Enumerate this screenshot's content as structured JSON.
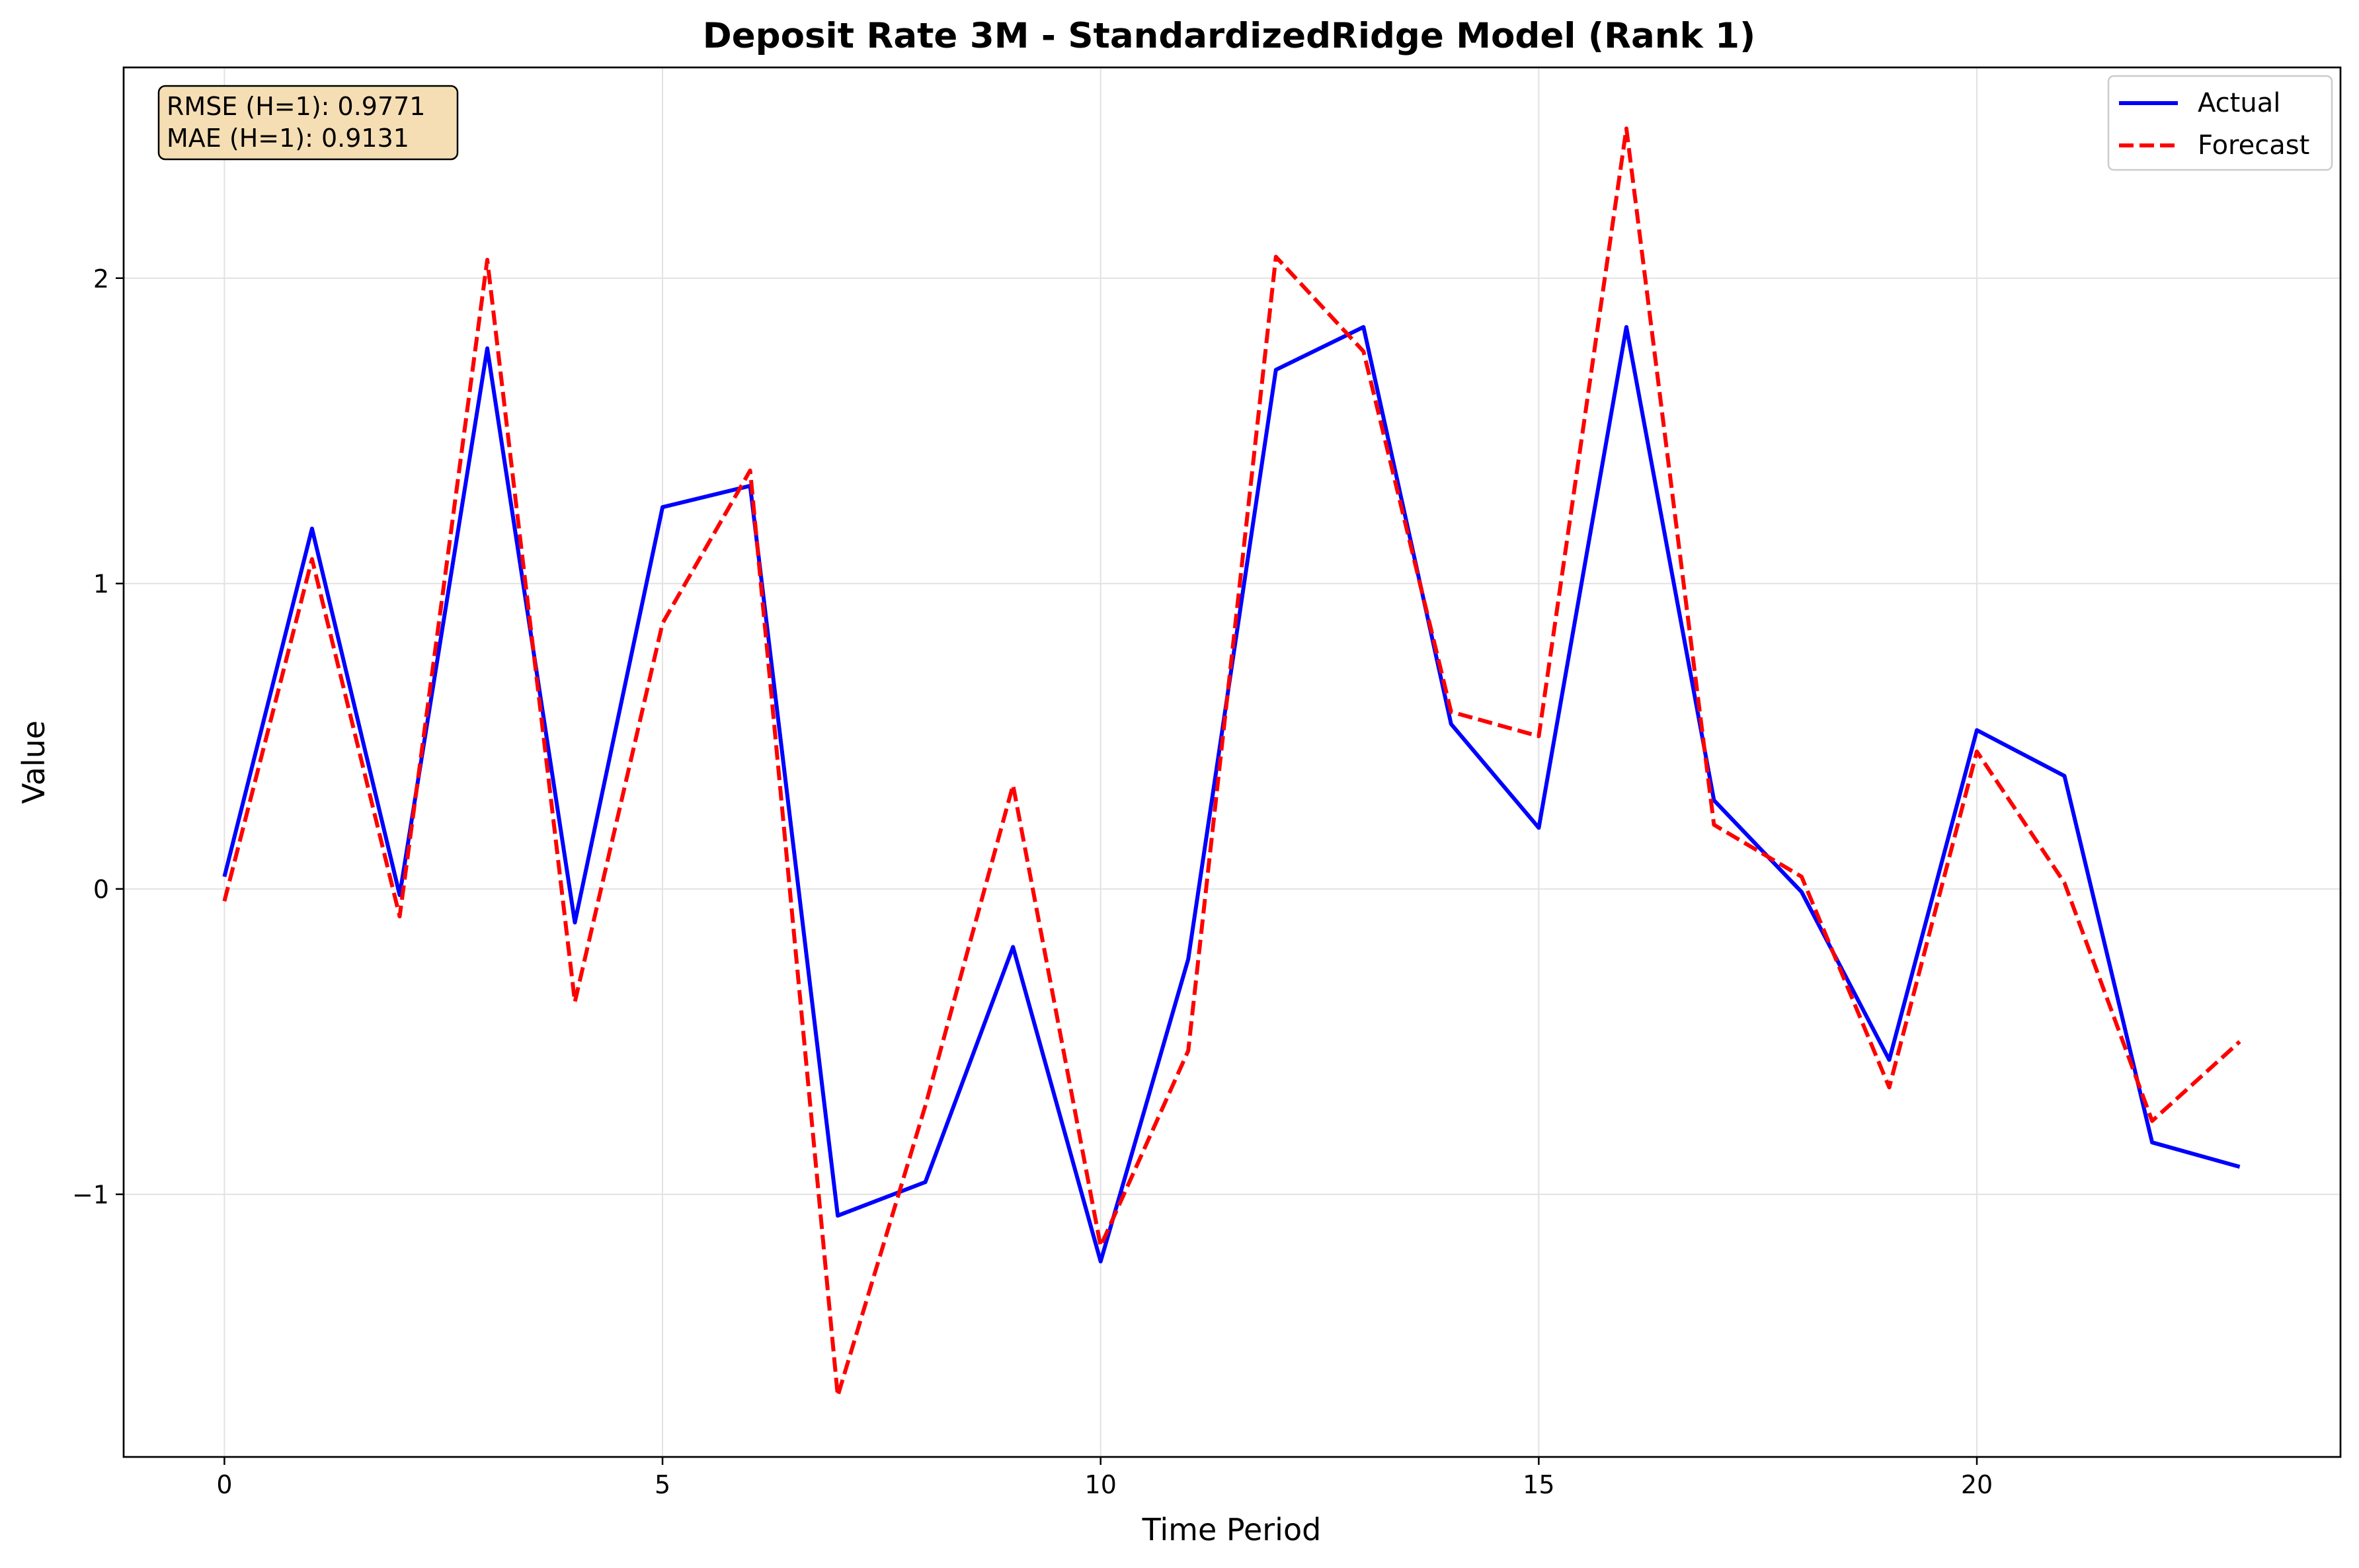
{
  "chart_data": {
    "type": "line",
    "title": "Deposit Rate 3M - StandardizedRidge Model (Rank 1)",
    "xlabel": "Time Period",
    "ylabel": "Value",
    "xlim": [
      -1.15,
      24.15
    ],
    "ylim": [
      -1.86,
      2.69
    ],
    "x_ticks": [
      0,
      5,
      10,
      15,
      20
    ],
    "y_ticks": [
      -1,
      0,
      1,
      2
    ],
    "x_tick_labels": [
      "0",
      "5",
      "10",
      "15",
      "20"
    ],
    "y_tick_labels": [
      "−1",
      "0",
      "1",
      "2"
    ],
    "grid": true,
    "legend_position": "upper right",
    "x": [
      0,
      1,
      2,
      3,
      4,
      5,
      6,
      7,
      8,
      9,
      10,
      11,
      12,
      13,
      14,
      15,
      16,
      17,
      18,
      19,
      20,
      21,
      22,
      23
    ],
    "series": [
      {
        "name": "Actual",
        "color": "#0000ff",
        "style": "solid",
        "values": [
          0.04,
          1.18,
          -0.02,
          1.77,
          -0.11,
          1.25,
          1.32,
          -1.07,
          -0.96,
          -0.19,
          -1.22,
          -0.23,
          1.7,
          1.84,
          0.54,
          0.2,
          1.84,
          0.29,
          -0.01,
          -0.56,
          0.52,
          0.37,
          -0.83,
          -0.91
        ]
      },
      {
        "name": "Forecast",
        "color": "#ff0000",
        "style": "dashed",
        "values": [
          -0.04,
          1.08,
          -0.09,
          2.06,
          -0.37,
          0.87,
          1.37,
          -1.66,
          -0.71,
          0.34,
          -1.17,
          -0.53,
          2.07,
          1.76,
          0.58,
          0.5,
          2.49,
          0.21,
          0.04,
          -0.65,
          0.45,
          0.02,
          -0.76,
          -0.5
        ]
      }
    ],
    "annotation": {
      "lines": [
        "RMSE (H=1): 0.9771",
        "MAE (H=1): 0.9131"
      ],
      "background": "#f5deb3",
      "position": "upper left"
    }
  }
}
